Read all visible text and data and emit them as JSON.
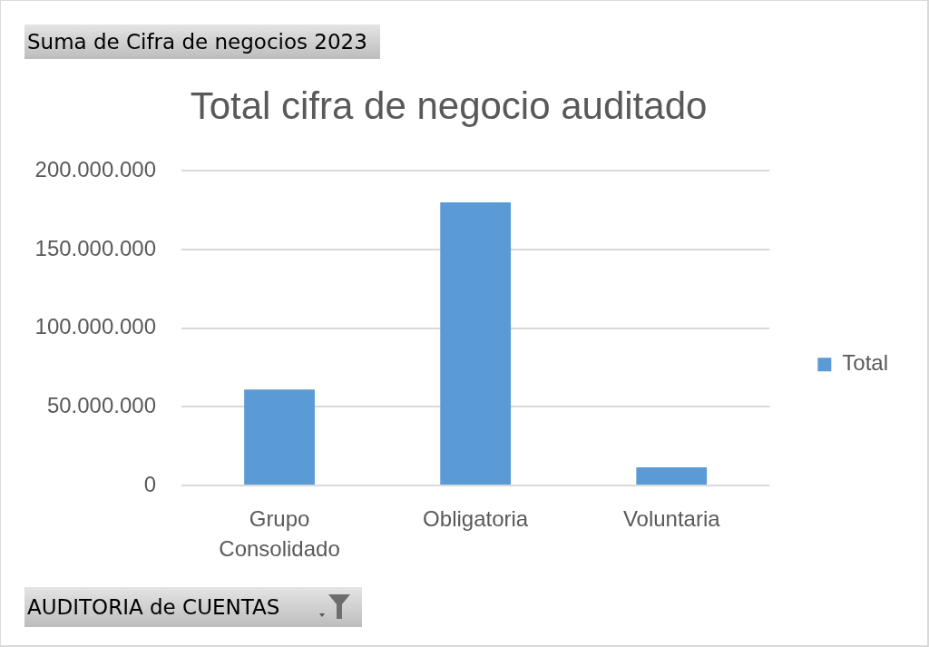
{
  "chart_data": {
    "type": "bar",
    "title": "Total cifra de negocio auditado",
    "categories": [
      "Grupo Consolidado",
      "Obligatoria",
      "Voluntaria"
    ],
    "series": [
      {
        "name": "Total",
        "color": "#5b9bd5",
        "values": [
          61000000,
          180000000,
          11600000
        ]
      }
    ],
    "ylim": [
      0,
      200000000
    ],
    "yticks": [
      0,
      {
        "value": 50000000,
        "label": "50.000.000"
      },
      {
        "value": 100000000,
        "label": "100.000.000"
      },
      {
        "value": 150000000,
        "label": "150.000.000"
      },
      {
        "value": 200000000,
        "label": "200.000.000"
      }
    ],
    "grid": "y",
    "legend": "right",
    "annotations": [
      "Suma de Cifra de negocios 2023",
      "AUDITORIA de CUENTAS"
    ]
  }
}
